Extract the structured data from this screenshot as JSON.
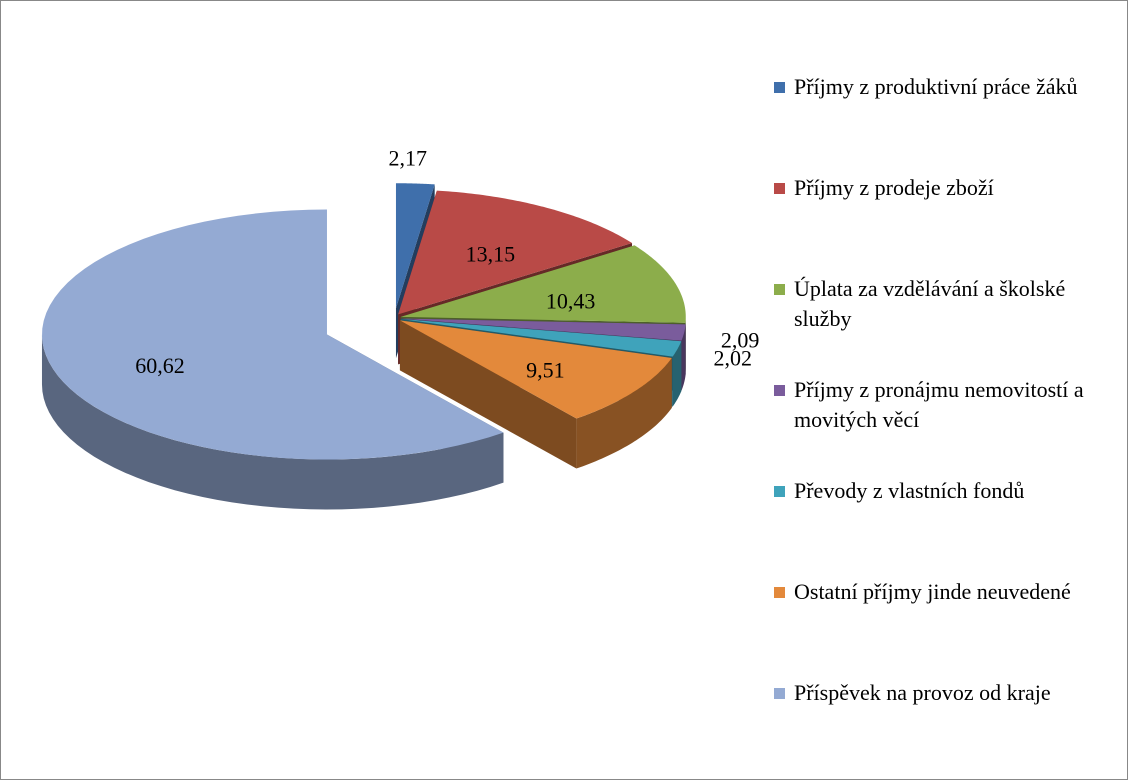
{
  "chart_data": {
    "type": "pie",
    "categories": [
      "Příjmy z produktivní práce žáků",
      "Příjmy z prodeje zboží",
      "Úplata za vzdělávání a školské služby",
      "Příjmy z pronájmu nemovitostí a movitých věcí",
      "Převody z vlastních fondů",
      "Ostatní příjmy jinde neuvedené",
      "Příspěvek na provoz od kraje"
    ],
    "values": [
      2.17,
      13.15,
      10.43,
      2.09,
      2.02,
      9.51,
      60.62
    ],
    "value_labels": [
      "2,17",
      "13,15",
      "10,43",
      "2,09",
      "2,02",
      "9,51",
      "60,62"
    ],
    "colors": [
      "#3f6fab",
      "#b94a47",
      "#8cad4b",
      "#7a5c9c",
      "#3fa3bb",
      "#e3893b",
      "#94aad3"
    ],
    "legend": "right"
  }
}
